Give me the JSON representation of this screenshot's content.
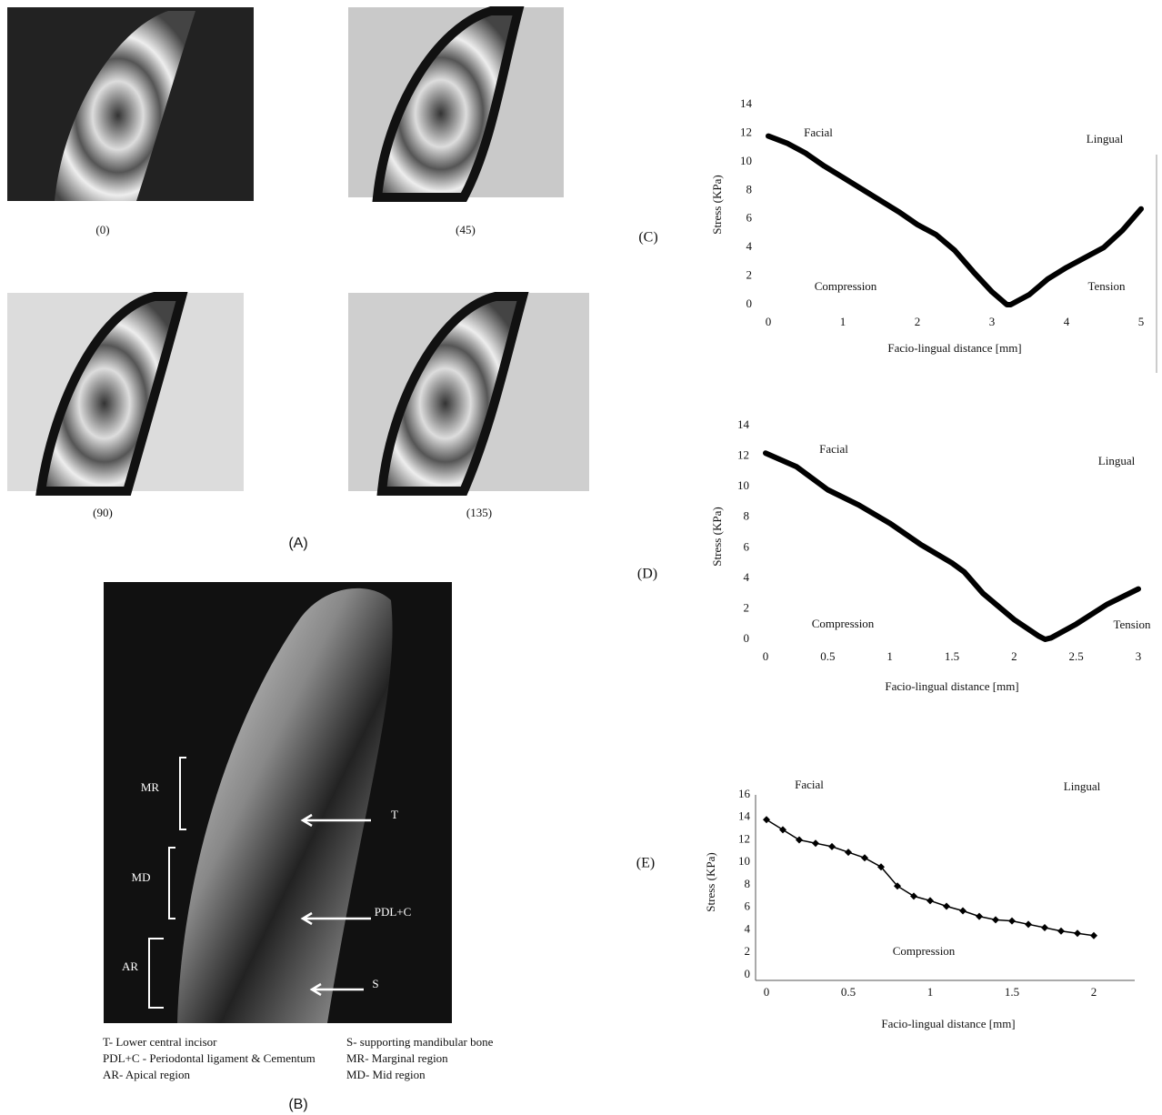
{
  "figure": {
    "panel_a": {
      "captions": [
        "(0)",
        "(45)",
        "(90)",
        "(135)"
      ],
      "label": "(A)"
    },
    "panel_b": {
      "regions": [
        "MR",
        "MD",
        "AR"
      ],
      "arrows": [
        "T",
        "PDL+C",
        "S"
      ],
      "legend": [
        "T- Lower central incisor",
        "PDL+C - Periodontal ligament & Cementum",
        "AR- Apical region",
        "S- supporting mandibular bone",
        "MR- Marginal region",
        "MD- Mid region"
      ],
      "label": "(B)"
    }
  },
  "chart_data": [
    {
      "type": "line",
      "panel": "(C)",
      "color": "#000000",
      "y_label": "Stress (KPa)",
      "x_label": "Facio-lingual distance [mm]",
      "annotations": [
        "Facial",
        "Lingual",
        "Compression",
        "Tension"
      ],
      "x": [
        0,
        0.25,
        0.5,
        0.75,
        1,
        1.25,
        1.5,
        1.75,
        2,
        2.25,
        2.5,
        2.75,
        3,
        3.2,
        3.25,
        3.5,
        3.75,
        4,
        4.25,
        4.5,
        4.75,
        5
      ],
      "values": [
        11.8,
        11.3,
        10.6,
        9.7,
        8.9,
        8.1,
        7.3,
        6.5,
        5.6,
        4.9,
        3.8,
        2.3,
        0.9,
        0.0,
        0.0,
        0.7,
        1.8,
        2.6,
        3.3,
        4.0,
        5.2,
        6.7
      ],
      "xlim": [
        0,
        5
      ],
      "xticks": [
        0,
        1,
        2,
        3,
        4,
        5
      ],
      "ylim": [
        0,
        14
      ],
      "yticks": [
        0,
        2,
        4,
        6,
        8,
        10,
        12,
        14
      ],
      "axes": false
    },
    {
      "type": "line",
      "panel": "(D)",
      "color": "#000000",
      "y_label": "Stress (KPa)",
      "x_label": "Facio-lingual distance [mm]",
      "annotations": [
        "Facial",
        "Lingual",
        "Compression",
        "Tension"
      ],
      "x": [
        0,
        0.25,
        0.5,
        0.75,
        1,
        1.25,
        1.5,
        1.6,
        1.75,
        2,
        2.2,
        2.25,
        2.3,
        2.5,
        2.75,
        3
      ],
      "values": [
        12.2,
        11.3,
        9.8,
        8.8,
        7.6,
        6.2,
        5.0,
        4.4,
        3.0,
        1.3,
        0.2,
        0.0,
        0.1,
        1.0,
        2.3,
        3.3
      ],
      "xlim": [
        0,
        3
      ],
      "xticks": [
        0,
        0.5,
        1,
        1.5,
        2,
        2.5,
        3
      ],
      "ylim": [
        0,
        14
      ],
      "yticks": [
        0,
        2,
        4,
        6,
        8,
        10,
        12,
        14
      ],
      "axes": false
    },
    {
      "type": "scatter-line",
      "panel": "(E)",
      "color": "#000000",
      "y_label": "Stress (KPa)",
      "x_label": "Facio-lingual distance [mm]",
      "annotations": [
        "Facial",
        "Lingual",
        "Compression"
      ],
      "x": [
        0,
        0.1,
        0.2,
        0.3,
        0.4,
        0.5,
        0.6,
        0.7,
        0.8,
        0.9,
        1,
        1.1,
        1.2,
        1.3,
        1.4,
        1.5,
        1.6,
        1.7,
        1.8,
        1.9,
        2
      ],
      "values": [
        13.8,
        12.9,
        12.0,
        11.7,
        11.4,
        10.9,
        10.4,
        9.6,
        7.9,
        7.0,
        6.6,
        6.1,
        5.7,
        5.2,
        4.9,
        4.8,
        4.5,
        4.2,
        3.9,
        3.7,
        3.5
      ],
      "xlim": [
        0,
        2.25
      ],
      "xticks": [
        0,
        0.5,
        1,
        1.5,
        2
      ],
      "ylim": [
        0,
        16
      ],
      "yticks": [
        0,
        2,
        4,
        6,
        8,
        10,
        12,
        14,
        16
      ],
      "axes": true
    }
  ]
}
